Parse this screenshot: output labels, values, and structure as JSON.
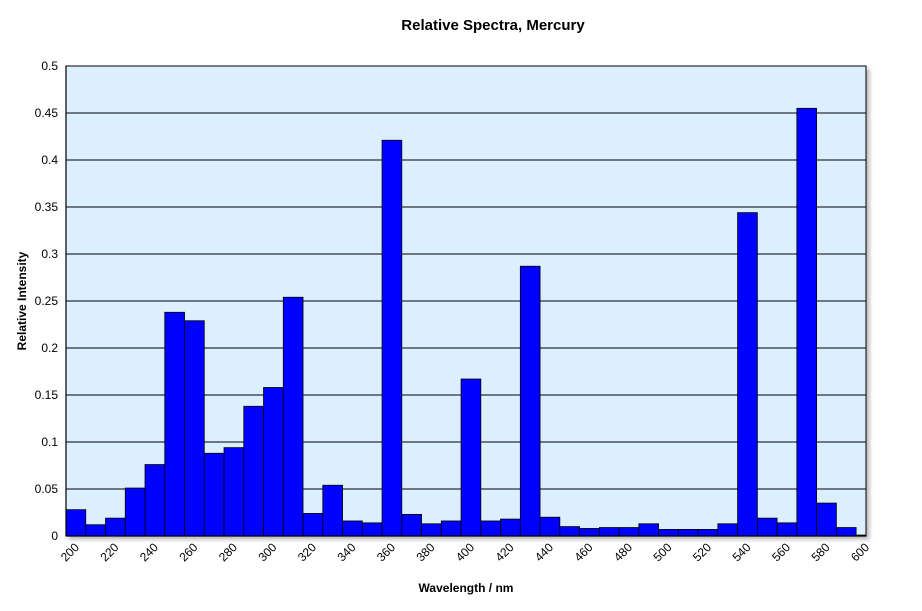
{
  "chart_data": {
    "type": "bar",
    "title": "Relative Spectra, Mercury",
    "xlabel": "Wavelength  / nm",
    "ylabel": "Relative Intensity",
    "ylim": [
      0,
      0.5
    ],
    "y_ticks": [
      "0",
      "0.05",
      "0.1",
      "0.15",
      "0.2",
      "0.25",
      "0.3",
      "0.35",
      "0.4",
      "0.45",
      "0.5"
    ],
    "x_tick_labels": [
      "200",
      "220",
      "240",
      "260",
      "280",
      "300",
      "320",
      "340",
      "360",
      "380",
      "400",
      "420",
      "440",
      "460",
      "480",
      "500",
      "520",
      "540",
      "560",
      "580",
      "600"
    ],
    "grid": true,
    "plot_background": "#dcefff",
    "bar_color": "#0000ff",
    "categories": [
      200,
      210,
      220,
      230,
      240,
      250,
      260,
      270,
      280,
      290,
      300,
      310,
      320,
      330,
      340,
      350,
      360,
      370,
      380,
      390,
      400,
      410,
      420,
      430,
      440,
      450,
      460,
      470,
      480,
      490,
      500,
      510,
      520,
      530,
      540,
      550,
      560,
      570,
      580,
      590,
      600
    ],
    "values": [
      0.028,
      0.012,
      0.019,
      0.051,
      0.076,
      0.238,
      0.229,
      0.088,
      0.094,
      0.138,
      0.158,
      0.254,
      0.024,
      0.054,
      0.016,
      0.014,
      0.421,
      0.023,
      0.013,
      0.016,
      0.167,
      0.016,
      0.018,
      0.287,
      0.02,
      0.01,
      0.008,
      0.009,
      0.009,
      0.013,
      0.007,
      0.007,
      0.007,
      0.013,
      0.344,
      0.019,
      0.014,
      0.455,
      0.035,
      0.009,
      0.001
    ]
  }
}
